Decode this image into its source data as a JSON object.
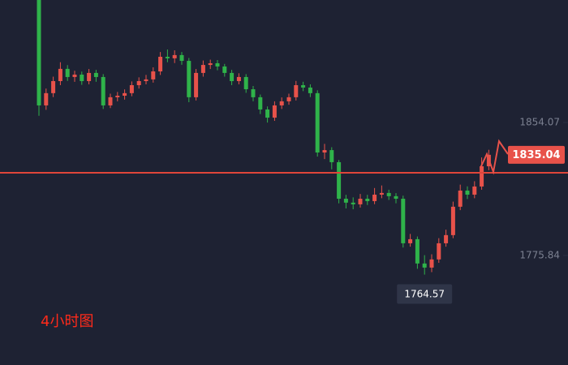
{
  "chart_data": {
    "type": "candlestick",
    "label": "4小时图",
    "up_color": "#e8524a",
    "down_color": "#2fb34a",
    "ylim": [
      1711.4,
      1926.1
    ],
    "yticks": [
      1854.07,
      1775.84
    ],
    "price_line": 1824.5,
    "open": [
      1926.1,
      1864.1,
      1871.3,
      1878.4,
      1885.6,
      1880.8,
      1882.2,
      1878.4,
      1883.2,
      1880.8,
      1864.1,
      1868.9,
      1869.8,
      1871.3,
      1876.0,
      1878.4,
      1879.4,
      1884.1,
      1892.7,
      1891.8,
      1893.7,
      1890.3,
      1868.9,
      1883.2,
      1887.9,
      1888.9,
      1887.0,
      1883.2,
      1878.4,
      1880.8,
      1873.6,
      1868.9,
      1861.7,
      1856.9,
      1864.1,
      1866.5,
      1868.9,
      1876.0,
      1874.6,
      1871.3,
      1836.4,
      1837.8,
      1830.7,
      1809.2,
      1806.9,
      1805.9,
      1809.2,
      1807.8,
      1811.6,
      1812.6,
      1810.7,
      1809.2,
      1783.0,
      1785.4,
      1771.1,
      1768.7,
      1773.5,
      1783.0,
      1787.8,
      1804.5,
      1814.0,
      1811.6,
      1816.4,
      1828.3
    ],
    "high": [
      1926.1,
      1874.0,
      1881.0,
      1889.5,
      1887.8,
      1884.5,
      1884.0,
      1885.5,
      1885.0,
      1882.5,
      1871.0,
      1872.0,
      1873.5,
      1878.2,
      1880.6,
      1882.0,
      1886.5,
      1895.5,
      1897.0,
      1896.5,
      1895.5,
      1892.0,
      1885.5,
      1890.5,
      1891.0,
      1890.8,
      1888.5,
      1885.0,
      1883.0,
      1882.5,
      1875.5,
      1870.5,
      1863.5,
      1866.5,
      1868.8,
      1871.0,
      1878.5,
      1878.0,
      1876.5,
      1873.0,
      1841.5,
      1839.5,
      1832.0,
      1811.5,
      1810.0,
      1812.0,
      1811.5,
      1815.5,
      1817.0,
      1814.5,
      1812.5,
      1811.0,
      1788.5,
      1787.0,
      1776.0,
      1776.5,
      1786.0,
      1791.0,
      1807.5,
      1817.5,
      1816.5,
      1819.5,
      1833.5,
      1838.0
    ],
    "low": [
      1858.0,
      1861.5,
      1869.0,
      1876.0,
      1878.5,
      1878.0,
      1876.2,
      1876.5,
      1878.0,
      1862.0,
      1862.5,
      1866.5,
      1867.5,
      1869.5,
      1874.0,
      1876.5,
      1877.5,
      1882.0,
      1889.5,
      1889.0,
      1888.0,
      1866.0,
      1867.0,
      1881.0,
      1885.5,
      1884.8,
      1881.0,
      1876.0,
      1876.5,
      1871.5,
      1866.5,
      1859.0,
      1854.0,
      1855.0,
      1862.0,
      1864.5,
      1867.0,
      1872.5,
      1869.0,
      1834.0,
      1832.5,
      1826.5,
      1806.5,
      1803.5,
      1803.0,
      1804.0,
      1805.5,
      1806.0,
      1809.5,
      1808.5,
      1806.5,
      1780.5,
      1781.0,
      1768.0,
      1764.57,
      1766.0,
      1771.5,
      1781.0,
      1786.0,
      1802.5,
      1809.0,
      1809.5,
      1814.5,
      1826.0
    ],
    "close": [
      1864.1,
      1871.3,
      1878.4,
      1885.6,
      1880.8,
      1882.2,
      1878.4,
      1883.2,
      1880.8,
      1864.1,
      1868.9,
      1869.8,
      1871.3,
      1876.0,
      1878.4,
      1879.4,
      1884.1,
      1892.7,
      1891.8,
      1893.7,
      1890.3,
      1868.9,
      1883.2,
      1887.9,
      1888.9,
      1887.0,
      1883.2,
      1878.4,
      1880.8,
      1873.6,
      1868.9,
      1861.7,
      1856.9,
      1864.1,
      1866.5,
      1868.9,
      1876.0,
      1874.6,
      1871.3,
      1836.4,
      1837.8,
      1830.7,
      1809.2,
      1806.9,
      1805.9,
      1809.2,
      1807.8,
      1811.6,
      1812.6,
      1810.7,
      1809.2,
      1783.0,
      1785.4,
      1771.1,
      1768.7,
      1773.5,
      1783.0,
      1787.8,
      1804.5,
      1814.0,
      1811.6,
      1816.4,
      1828.3,
      1835.04
    ]
  }
}
